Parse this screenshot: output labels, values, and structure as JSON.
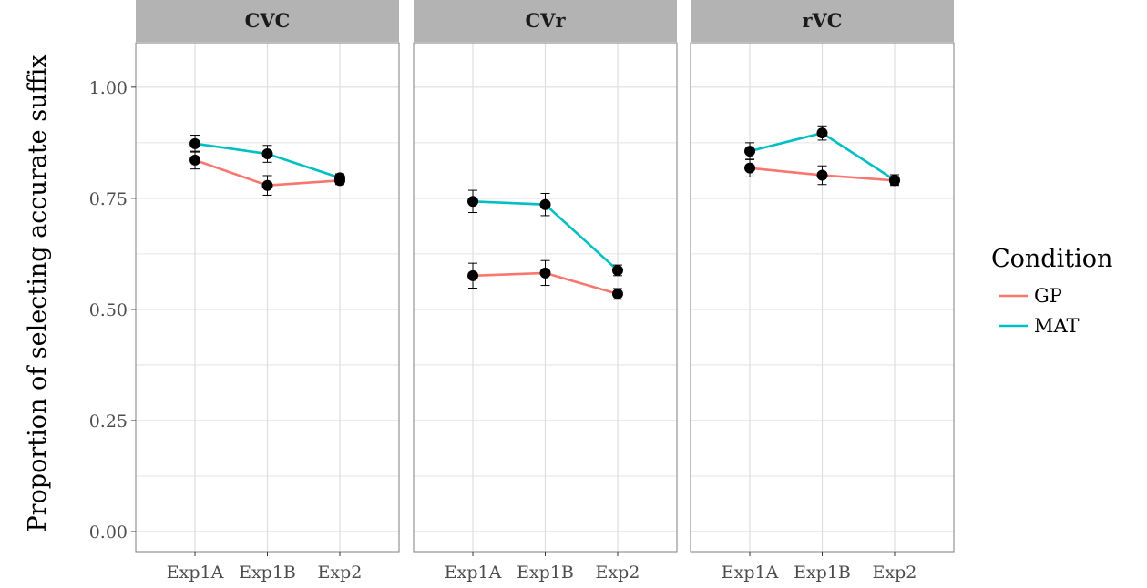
{
  "chart_data": {
    "type": "line",
    "ylabel": "Proportion of selecting accurate suffix",
    "xlabel": "",
    "ylim": [
      -0.045,
      1.1
    ],
    "y_ticks": [
      0.0,
      0.25,
      0.5,
      0.75,
      1.0
    ],
    "y_tick_labels": [
      "0.00",
      "0.25",
      "0.50",
      "0.75",
      "1.00"
    ],
    "categories": [
      "Exp1A",
      "Exp1B",
      "Exp2"
    ],
    "grid": true,
    "legend": {
      "title": "Condition",
      "placement": "right",
      "entries": [
        {
          "name": "GP",
          "color": "#F8766D"
        },
        {
          "name": "MAT",
          "color": "#00BFC4"
        }
      ]
    },
    "facets": [
      {
        "title": "CVC",
        "series": [
          {
            "name": "GP",
            "values": [
              0.836,
              0.779,
              0.79
            ],
            "errors": [
              0.02,
              0.022,
              0.009
            ]
          },
          {
            "name": "MAT",
            "values": [
              0.873,
              0.85,
              0.796
            ],
            "errors": [
              0.019,
              0.019,
              0.009
            ]
          }
        ]
      },
      {
        "title": "CVr",
        "series": [
          {
            "name": "GP",
            "values": [
              0.576,
              0.582,
              0.535
            ],
            "errors": [
              0.028,
              0.028,
              0.012
            ]
          },
          {
            "name": "MAT",
            "values": [
              0.743,
              0.736,
              0.588
            ],
            "errors": [
              0.025,
              0.025,
              0.012
            ]
          }
        ]
      },
      {
        "title": "rVC",
        "series": [
          {
            "name": "GP",
            "values": [
              0.818,
              0.802,
              0.79
            ],
            "errors": [
              0.02,
              0.021,
              0.009
            ]
          },
          {
            "name": "MAT",
            "values": [
              0.856,
              0.897,
              0.791
            ],
            "errors": [
              0.019,
              0.016,
              0.012
            ]
          }
        ]
      }
    ],
    "colors": {
      "panel_border": "#7f7f7f",
      "strip_fill": "#b3b3b3",
      "grid": "#dedede",
      "point": "#000000"
    }
  }
}
